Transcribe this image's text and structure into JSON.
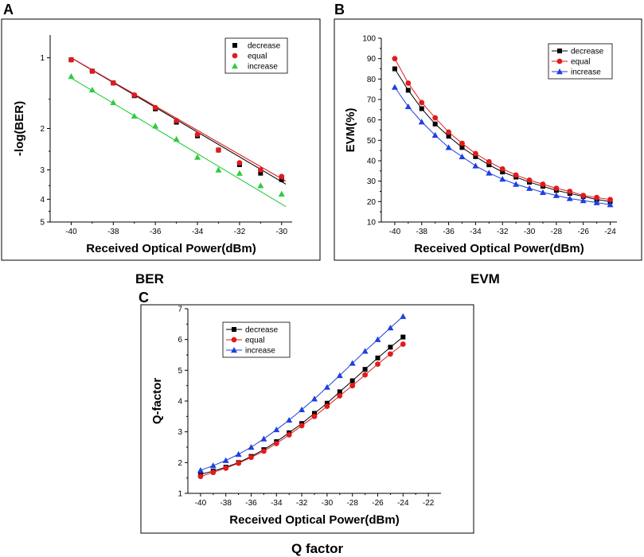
{
  "panels": [
    {
      "letter": "A",
      "caption": "BER"
    },
    {
      "letter": "B",
      "caption": "EVM"
    },
    {
      "letter": "C",
      "caption": "Q factor"
    }
  ],
  "colors": {
    "decrease": "#000000",
    "equal": "#e31a1c",
    "increase_A": "#2ecc40",
    "increase": "#1f3fe0"
  },
  "chart_data": [
    {
      "id": "A",
      "type": "scatter",
      "title": "BER",
      "xlabel": "Received Optical Power(dBm)",
      "ylabel": "-log(BER)",
      "xlim": [
        -41,
        -29.5
      ],
      "ylim_log": [
        0.8,
        5
      ],
      "y_inverted_log_scale": true,
      "xticks": [
        -40,
        -38,
        -36,
        -34,
        -32,
        -30
      ],
      "yticks": [
        1,
        2,
        3,
        4,
        5
      ],
      "legend_position": "top-right",
      "series": [
        {
          "name": "decrease",
          "marker": "square",
          "x": [
            -40,
            -39,
            -38,
            -37,
            -36,
            -35,
            -34,
            -33,
            -32,
            -31,
            -30
          ],
          "y": [
            1.02,
            1.14,
            1.28,
            1.45,
            1.65,
            1.88,
            2.15,
            2.47,
            2.85,
            3.1,
            3.3
          ],
          "fit": [
            [
              -40,
              1.0
            ],
            [
              -29.8,
              3.45
            ]
          ]
        },
        {
          "name": "equal",
          "marker": "circle",
          "x": [
            -40,
            -39,
            -38,
            -37,
            -36,
            -35,
            -34,
            -33,
            -32,
            -31,
            -30
          ],
          "y": [
            1.02,
            1.14,
            1.28,
            1.44,
            1.63,
            1.85,
            2.12,
            2.47,
            2.8,
            3.0,
            3.2
          ],
          "fit": [
            [
              -40,
              1.0
            ],
            [
              -29.8,
              3.35
            ]
          ]
        },
        {
          "name": "increase",
          "marker": "triangle",
          "x": [
            -40,
            -39,
            -38,
            -37,
            -36,
            -35,
            -34,
            -33,
            -32,
            -31,
            -30
          ],
          "y": [
            1.2,
            1.37,
            1.55,
            1.77,
            1.95,
            2.22,
            2.65,
            3.0,
            3.1,
            3.5,
            3.8
          ],
          "fit": [
            [
              -40,
              1.22
            ],
            [
              -29.8,
              4.3
            ]
          ]
        }
      ]
    },
    {
      "id": "B",
      "type": "line",
      "title": "EVM",
      "xlabel": "Received Optical Power(dBm)",
      "ylabel": "EVM(%)",
      "xlim": [
        -41,
        -23.5
      ],
      "ylim": [
        10,
        100
      ],
      "xticks": [
        -40,
        -38,
        -36,
        -34,
        -32,
        -30,
        -28,
        -26,
        -24
      ],
      "yticks": [
        10,
        20,
        30,
        40,
        50,
        60,
        70,
        80,
        90,
        100
      ],
      "legend_position": "top-right",
      "series": [
        {
          "name": "decrease",
          "marker": "square",
          "x": [
            -40,
            -39,
            -38,
            -37,
            -36,
            -35,
            -34,
            -33,
            -32,
            -31,
            -30,
            -29,
            -28,
            -27,
            -26,
            -25,
            -24
          ],
          "values": [
            85,
            74.5,
            65.5,
            58,
            52,
            46.5,
            42,
            38,
            34.5,
            32,
            29.5,
            27.5,
            25.5,
            24,
            22.5,
            21,
            20
          ]
        },
        {
          "name": "equal",
          "marker": "circle",
          "x": [
            -40,
            -39,
            -38,
            -37,
            -36,
            -35,
            -34,
            -33,
            -32,
            -31,
            -30,
            -29,
            -28,
            -27,
            -26,
            -25,
            -24
          ],
          "values": [
            90,
            78,
            68.5,
            61,
            54,
            48.5,
            43.5,
            39.5,
            36,
            33,
            30.5,
            28.5,
            26.5,
            25,
            23,
            22,
            21
          ]
        },
        {
          "name": "increase",
          "marker": "triangle",
          "x": [
            -40,
            -39,
            -38,
            -37,
            -36,
            -35,
            -34,
            -33,
            -32,
            -31,
            -30,
            -29,
            -28,
            -27,
            -26,
            -25,
            -24
          ],
          "values": [
            76,
            66.5,
            59,
            52.5,
            46.5,
            42,
            37.5,
            34,
            31,
            28.5,
            26.5,
            24.5,
            23,
            21.5,
            20.5,
            19.5,
            18.5
          ]
        }
      ]
    },
    {
      "id": "C",
      "type": "line",
      "title": "Q factor",
      "xlabel": "Received Optical Power(dBm)",
      "ylabel": "Q-factor",
      "xlim": [
        -41,
        -21
      ],
      "ylim": [
        1,
        7
      ],
      "xticks": [
        -40,
        -38,
        -36,
        -34,
        -32,
        -30,
        -28,
        -26,
        -24,
        -22
      ],
      "yticks": [
        1,
        2,
        3,
        4,
        5,
        6,
        7
      ],
      "legend_position": "top-left",
      "series": [
        {
          "name": "decrease",
          "marker": "square",
          "x": [
            -40,
            -39,
            -38,
            -37,
            -36,
            -35,
            -34,
            -33,
            -32,
            -31,
            -30,
            -29,
            -28,
            -27,
            -26,
            -25,
            -24
          ],
          "values": [
            1.62,
            1.72,
            1.85,
            2.0,
            2.2,
            2.42,
            2.68,
            2.97,
            3.27,
            3.6,
            3.93,
            4.3,
            4.66,
            5.03,
            5.4,
            5.75,
            6.08
          ]
        },
        {
          "name": "equal",
          "marker": "circle",
          "x": [
            -40,
            -39,
            -38,
            -37,
            -36,
            -35,
            -34,
            -33,
            -32,
            -31,
            -30,
            -29,
            -28,
            -27,
            -26,
            -25,
            -24
          ],
          "values": [
            1.55,
            1.68,
            1.82,
            1.98,
            2.17,
            2.37,
            2.62,
            2.9,
            3.2,
            3.5,
            3.83,
            4.17,
            4.5,
            4.85,
            5.2,
            5.53,
            5.85
          ]
        },
        {
          "name": "increase",
          "marker": "triangle",
          "x": [
            -40,
            -39,
            -38,
            -37,
            -36,
            -35,
            -34,
            -33,
            -32,
            -31,
            -30,
            -29,
            -28,
            -27,
            -26,
            -25,
            -24
          ],
          "values": [
            1.75,
            1.9,
            2.07,
            2.27,
            2.5,
            2.77,
            3.07,
            3.38,
            3.72,
            4.07,
            4.45,
            4.83,
            5.23,
            5.62,
            6.0,
            6.38,
            6.75
          ]
        }
      ]
    }
  ]
}
